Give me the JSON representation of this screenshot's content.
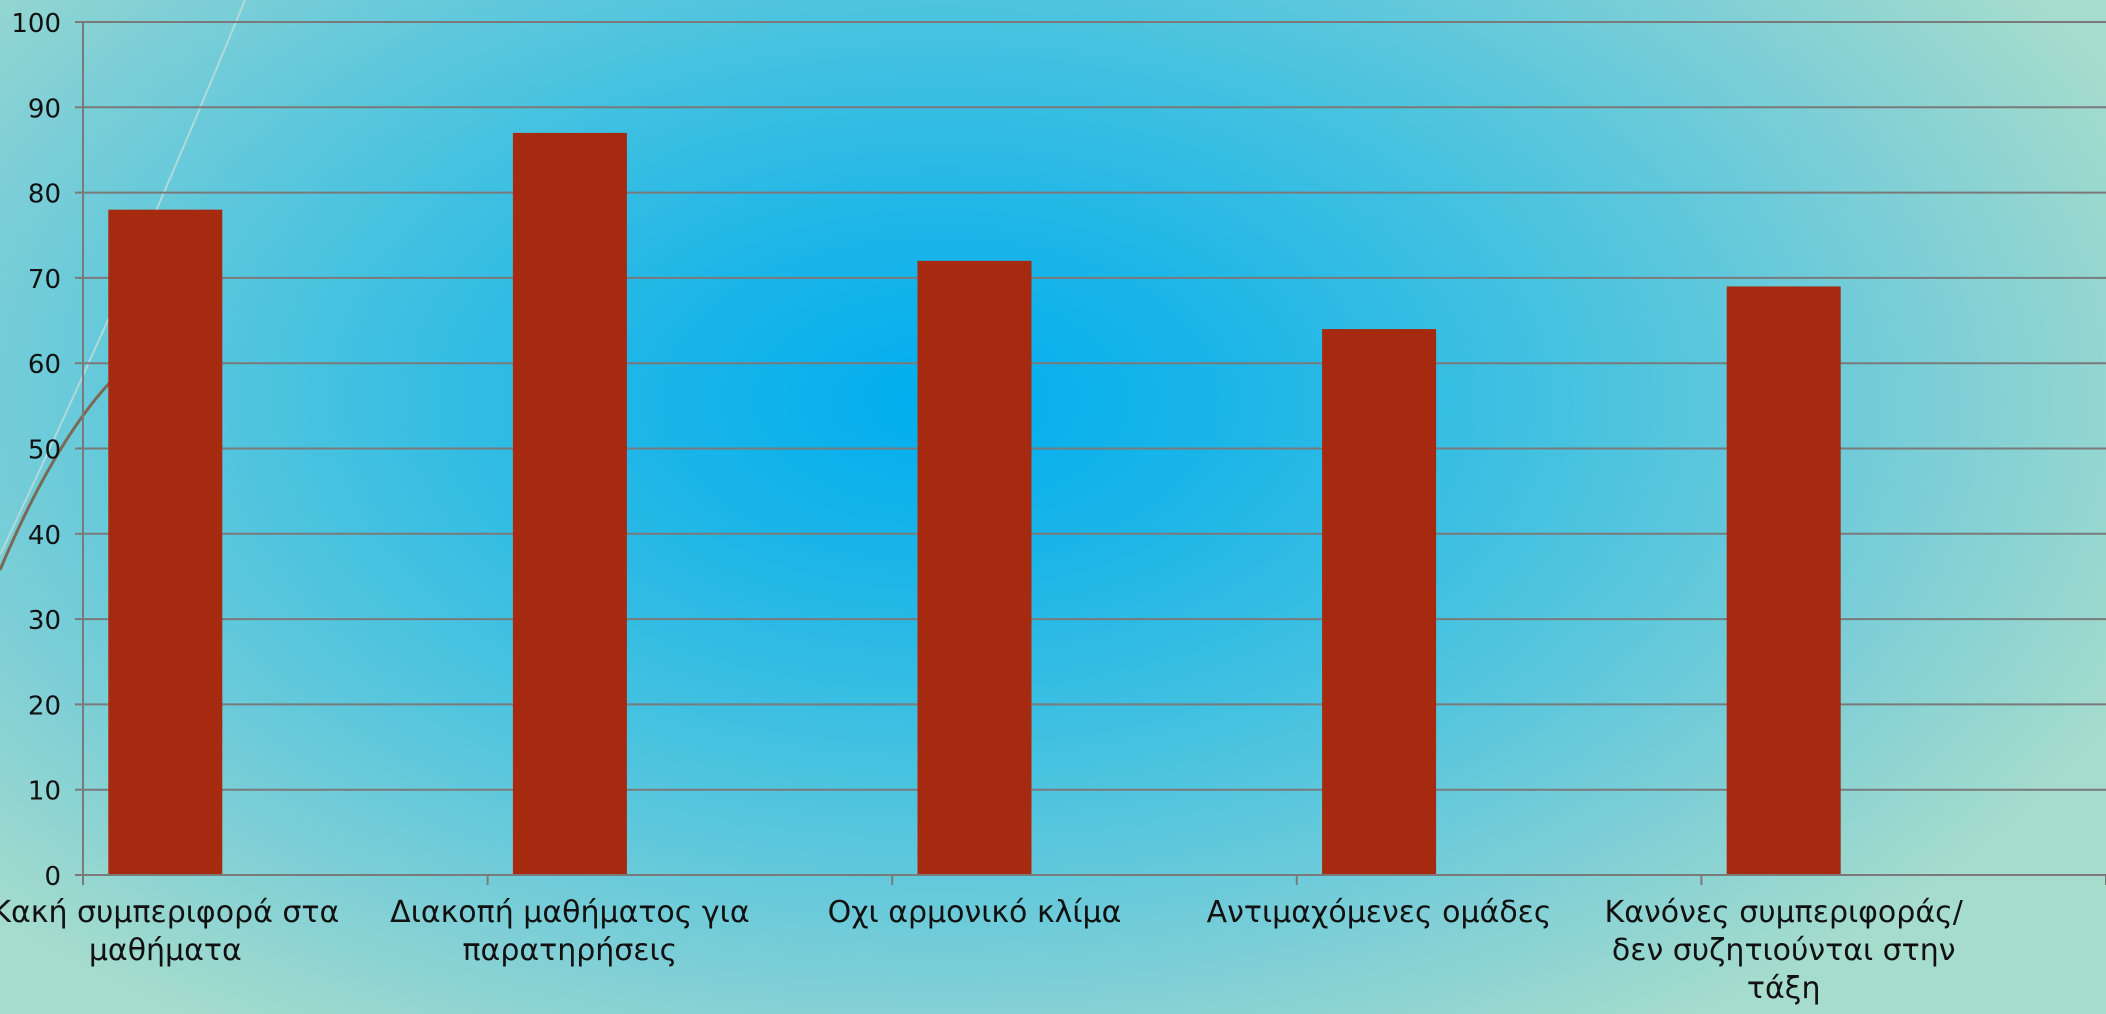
{
  "chart_data": {
    "type": "bar",
    "categories": [
      "Κακή συμπεριφορά στα\nμαθήματα",
      "Διακοπή μαθήματος για\nπαρατηρήσεις",
      "Οχι αρμονικό κλίμα",
      "Αντιμαχόμενες ομάδες",
      "Κανόνες συμπεριφοράς/\nδεν συζητιούνται στην\nτάξη"
    ],
    "values": [
      78,
      87,
      72,
      64,
      69
    ],
    "ylim": [
      0,
      100
    ],
    "yticks": [
      "0",
      "10",
      "20",
      "30",
      "40",
      "50",
      "60",
      "70",
      "80",
      "90",
      "100"
    ],
    "title": "",
    "xlabel": "",
    "ylabel": "",
    "grid": true,
    "legend": "none",
    "colors": {
      "bar": "#a52a0f",
      "grid": "#7a7a7a",
      "axis": "#7a7a7a",
      "text": "#111111",
      "deco_curve": "#7a6a55"
    }
  }
}
